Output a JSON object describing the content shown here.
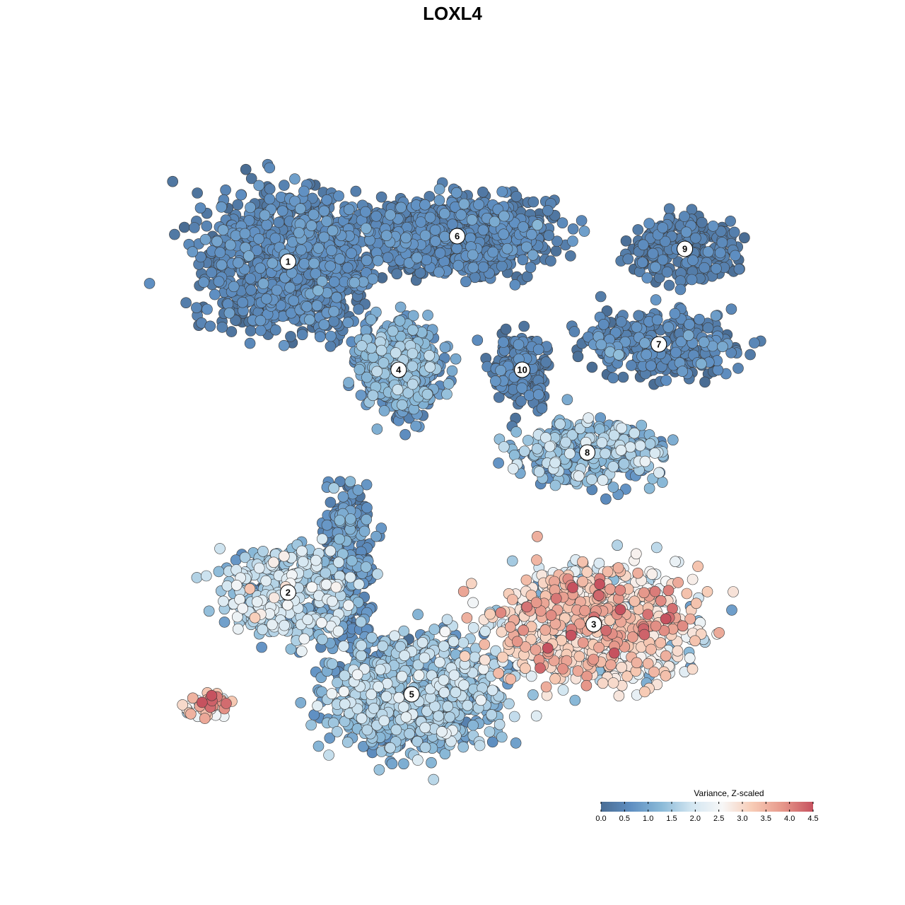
{
  "chart_data": {
    "type": "scatter",
    "title": "LOXL4",
    "xlabel": "",
    "ylabel": "",
    "grid": false,
    "legend": {
      "title": "Variance, Z-scaled",
      "placement": "bottom-right",
      "range": [
        0.0,
        4.5
      ],
      "ticks": [
        "0.0",
        "0.5",
        "1.0",
        "1.5",
        "2.0",
        "2.5",
        "3.0",
        "3.5",
        "4.0",
        "4.5"
      ],
      "colors": [
        "#4a6d94",
        "#5f8fc2",
        "#8bbad8",
        "#d3e6f1",
        "#f7f7f7",
        "#f7cbb5",
        "#e6978a",
        "#c6525f"
      ]
    },
    "clusters": [
      {
        "label": "1",
        "x": 0.22,
        "y": 0.8,
        "spread_x": 0.13,
        "spread_y": 0.11,
        "mean_value": 0.4,
        "value_sd": 0.25,
        "count": 900
      },
      {
        "label": "6",
        "x": 0.48,
        "y": 0.84,
        "spread_x": 0.14,
        "spread_y": 0.06,
        "mean_value": 0.35,
        "value_sd": 0.25,
        "count": 700
      },
      {
        "label": "9",
        "x": 0.83,
        "y": 0.82,
        "spread_x": 0.08,
        "spread_y": 0.05,
        "mean_value": 0.25,
        "value_sd": 0.2,
        "count": 250
      },
      {
        "label": "7",
        "x": 0.79,
        "y": 0.67,
        "spread_x": 0.11,
        "spread_y": 0.05,
        "mean_value": 0.35,
        "value_sd": 0.3,
        "count": 300
      },
      {
        "label": "4",
        "x": 0.39,
        "y": 0.63,
        "spread_x": 0.06,
        "spread_y": 0.07,
        "mean_value": 0.9,
        "value_sd": 0.35,
        "count": 500
      },
      {
        "label": "10",
        "x": 0.58,
        "y": 0.63,
        "spread_x": 0.04,
        "spread_y": 0.06,
        "mean_value": 0.3,
        "value_sd": 0.2,
        "count": 180
      },
      {
        "label": "8",
        "x": 0.68,
        "y": 0.5,
        "spread_x": 0.11,
        "spread_y": 0.05,
        "mean_value": 1.1,
        "value_sd": 0.5,
        "count": 320
      },
      {
        "label": "2",
        "x": 0.22,
        "y": 0.28,
        "spread_x": 0.09,
        "spread_y": 0.07,
        "mean_value": 1.5,
        "value_sd": 0.5,
        "count": 400
      },
      {
        "label": "5",
        "x": 0.41,
        "y": 0.12,
        "spread_x": 0.13,
        "spread_y": 0.09,
        "mean_value": 1.2,
        "value_sd": 0.45,
        "count": 800
      },
      {
        "label": "3",
        "x": 0.69,
        "y": 0.23,
        "spread_x": 0.15,
        "spread_y": 0.09,
        "mean_value": 2.6,
        "value_sd": 0.8,
        "count": 900
      },
      {
        "label": "",
        "x": 0.1,
        "y": 0.1,
        "spread_x": 0.05,
        "spread_y": 0.02,
        "mean_value": 3.4,
        "value_sd": 0.8,
        "count": 40
      },
      {
        "label": "",
        "x": 0.31,
        "y": 0.32,
        "spread_x": 0.04,
        "spread_y": 0.12,
        "mean_value": 0.6,
        "value_sd": 0.3,
        "count": 300
      }
    ]
  }
}
